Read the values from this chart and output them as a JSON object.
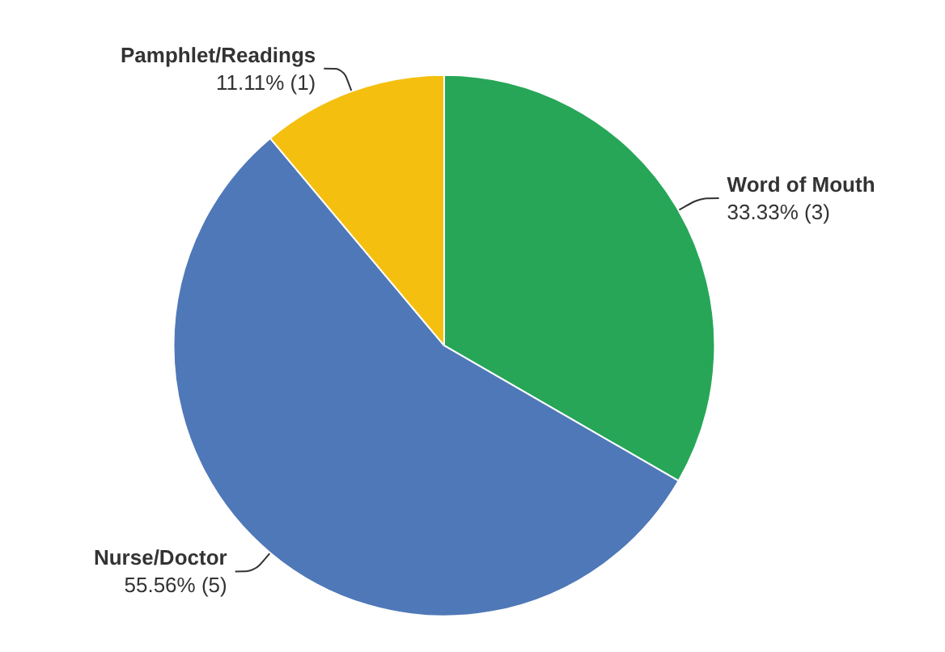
{
  "chart_data": {
    "type": "pie",
    "categories": [
      "Word of Mouth",
      "Nurse/Doctor",
      "Pamphlet/Readings"
    ],
    "values": [
      3,
      5,
      1
    ],
    "value_labels": [
      "33.33% (3)",
      "55.56% (5)",
      "11.11% (1)"
    ],
    "colors": [
      "#27a658",
      "#4f78b8",
      "#f5bf0f"
    ],
    "legend": false
  }
}
